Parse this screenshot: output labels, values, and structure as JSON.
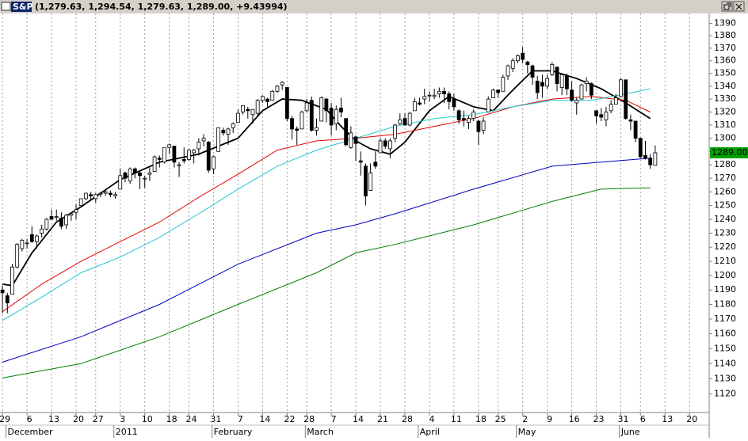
{
  "chart_data": {
    "type": "candlestick",
    "symbol": "S&P",
    "title": "(1,279.63, 1,294.54, 1,279.63, 1,289.00, +9.43994)",
    "log_scale": true,
    "grid": true,
    "up_color": "#ffffff",
    "down_color": "#000000",
    "open": [
      1190,
      1186,
      1187,
      1206,
      1219,
      1223,
      1229,
      1224,
      1230,
      1233,
      1242,
      1242,
      1241,
      1236,
      1243,
      1245,
      1250,
      1255,
      1258,
      1255,
      1259,
      1259,
      1259,
      1257,
      1262,
      1274,
      1268,
      1277,
      1274,
      1270,
      1273,
      1275,
      1285,
      1282,
      1293,
      1294,
      1280,
      1284,
      1284,
      1289,
      1292,
      1298,
      1297,
      1277,
      1290,
      1306,
      1303,
      1308,
      1312,
      1320,
      1322,
      1318,
      1319,
      1329,
      1330,
      1329,
      1336,
      1341,
      1339,
      1315,
      1307,
      1307,
      1321,
      1329,
      1306,
      1313,
      1330,
      1323,
      1311,
      1323,
      1315,
      1293,
      1301,
      1283,
      1279,
      1261,
      1282,
      1289,
      1298,
      1292,
      1300,
      1311,
      1315,
      1310,
      1321,
      1327,
      1330,
      1333,
      1332,
      1334,
      1336,
      1334,
      1330,
      1321,
      1315,
      1312,
      1315,
      1313,
      1306,
      1320,
      1331,
      1337,
      1336,
      1348,
      1354,
      1360,
      1366,
      1359,
      1356,
      1344,
      1343,
      1340,
      1349,
      1355,
      1339,
      1348,
      1337,
      1327,
      1330,
      1342,
      1342,
      1321,
      1318,
      1314,
      1321,
      1326,
      1332,
      1345,
      1314,
      1313,
      1300,
      1287,
      1285,
      1279.63
    ],
    "high": [
      1193,
      1188,
      1208,
      1223,
      1226,
      1226,
      1235,
      1229,
      1236,
      1241,
      1247,
      1247,
      1245,
      1244,
      1244,
      1251,
      1255,
      1259,
      1260,
      1259,
      1260,
      1262,
      1261,
      1260,
      1277,
      1275,
      1278,
      1278,
      1276,
      1272,
      1278,
      1287,
      1287,
      1293,
      1296,
      1294,
      1282,
      1293,
      1292,
      1292,
      1300,
      1303,
      1298,
      1287,
      1308,
      1308,
      1308,
      1312,
      1322,
      1325,
      1324,
      1322,
      1330,
      1333,
      1331,
      1337,
      1341,
      1344,
      1339,
      1317,
      1309,
      1321,
      1330,
      1332,
      1315,
      1332,
      1331,
      1327,
      1325,
      1331,
      1315,
      1309,
      1302,
      1290,
      1281,
      1281,
      1290,
      1300,
      1300,
      1300,
      1311,
      1319,
      1319,
      1320,
      1331,
      1331,
      1338,
      1336,
      1338,
      1339,
      1339,
      1336,
      1334,
      1322,
      1321,
      1317,
      1322,
      1314,
      1316,
      1332,
      1338,
      1337,
      1349,
      1357,
      1362,
      1365,
      1371,
      1360,
      1357,
      1348,
      1349,
      1349,
      1359,
      1355,
      1350,
      1350,
      1344,
      1331,
      1342,
      1347,
      1343,
      1321,
      1323,
      1324,
      1329,
      1334,
      1346,
      1345,
      1318,
      1313,
      1300,
      1298,
      1288,
      1294.54
    ],
    "low": [
      1174,
      1174,
      1187,
      1205,
      1217,
      1219,
      1223,
      1219,
      1227,
      1232,
      1240,
      1239,
      1233,
      1233,
      1239,
      1240,
      1250,
      1254,
      1254,
      1252,
      1256,
      1257,
      1256,
      1255,
      1262,
      1267,
      1266,
      1270,
      1262,
      1263,
      1268,
      1275,
      1278,
      1281,
      1288,
      1278,
      1271,
      1281,
      1283,
      1281,
      1287,
      1294,
      1274,
      1273,
      1290,
      1302,
      1295,
      1304,
      1312,
      1318,
      1315,
      1311,
      1317,
      1327,
      1324,
      1329,
      1335,
      1337,
      1313,
      1299,
      1295,
      1307,
      1320,
      1305,
      1302,
      1313,
      1312,
      1302,
      1306,
      1316,
      1294,
      1292,
      1283,
      1272,
      1250,
      1261,
      1277,
      1289,
      1292,
      1285,
      1297,
      1310,
      1310,
      1309,
      1321,
      1325,
      1326,
      1328,
      1330,
      1331,
      1327,
      1322,
      1321,
      1311,
      1309,
      1307,
      1313,
      1295,
      1303,
      1320,
      1331,
      1331,
      1336,
      1345,
      1351,
      1358,
      1358,
      1350,
      1341,
      1330,
      1331,
      1338,
      1348,
      1336,
      1333,
      1333,
      1328,
      1318,
      1330,
      1336,
      1330,
      1311,
      1313,
      1309,
      1319,
      1326,
      1332,
      1314,
      1306,
      1297,
      1285,
      1284,
      1277,
      1279.63
    ],
    "close": [
      1188,
      1181,
      1206,
      1222,
      1225,
      1223,
      1224,
      1228,
      1233,
      1240,
      1240,
      1242,
      1235,
      1243,
      1244,
      1247,
      1255,
      1259,
      1257,
      1258,
      1259,
      1260,
      1258,
      1258,
      1272,
      1270,
      1277,
      1274,
      1272,
      1270,
      1274,
      1286,
      1284,
      1293,
      1295,
      1282,
      1280,
      1283,
      1291,
      1291,
      1297,
      1300,
      1276,
      1286,
      1308,
      1304,
      1307,
      1311,
      1319,
      1325,
      1321,
      1322,
      1329,
      1332,
      1328,
      1336,
      1340,
      1343,
      1315,
      1307,
      1306,
      1320,
      1327,
      1306,
      1308,
      1331,
      1321,
      1310,
      1322,
      1320,
      1295,
      1304,
      1296,
      1282,
      1257,
      1274,
      1279,
      1298,
      1294,
      1298,
      1310,
      1314,
      1310,
      1319,
      1328,
      1326,
      1332,
      1333,
      1333,
      1336,
      1334,
      1328,
      1324,
      1314,
      1314,
      1315,
      1320,
      1305,
      1313,
      1330,
      1337,
      1335,
      1347,
      1356,
      1360,
      1364,
      1361,
      1357,
      1347,
      1335,
      1340,
      1346,
      1357,
      1342,
      1349,
      1338,
      1329,
      1329,
      1341,
      1344,
      1333,
      1317,
      1316,
      1320,
      1326,
      1331,
      1345,
      1315,
      1313,
      1300,
      1286,
      1285,
      1280,
      1289
    ],
    "series": [
      {
        "color": "#000000",
        "x": [
          0,
          2,
          6,
          11,
          16,
          24,
          32,
          40,
          48,
          53,
          57,
          61,
          66,
          69,
          72,
          75,
          79,
          82,
          87,
          91,
          96,
          100,
          104,
          108,
          112,
          117,
          122,
          127,
          132
        ],
        "values": [
          1194,
          1193,
          1216,
          1238,
          1249,
          1269,
          1282,
          1288,
          1300,
          1321,
          1330,
          1329,
          1322,
          1309,
          1298,
          1292,
          1288,
          1297,
          1321,
          1332,
          1324,
          1321,
          1337,
          1352,
          1352,
          1346,
          1338,
          1327,
          1315
        ]
      },
      {
        "color": "#e00000",
        "x": [
          0,
          8,
          16,
          24,
          32,
          40,
          48,
          56,
          64,
          72,
          80,
          88,
          96,
          104,
          112,
          120,
          127,
          132
        ],
        "values": [
          1175,
          1194,
          1210,
          1224,
          1238,
          1256,
          1273,
          1291,
          1298,
          1300,
          1303,
          1309,
          1315,
          1324,
          1330,
          1332,
          1329,
          1320
        ]
      },
      {
        "color": "#20c8d0",
        "x": [
          0,
          8,
          16,
          24,
          32,
          40,
          48,
          56,
          64,
          72,
          80,
          88,
          96,
          104,
          112,
          120,
          127,
          132
        ],
        "values": [
          1169,
          1185,
          1202,
          1213,
          1227,
          1244,
          1262,
          1279,
          1291,
          1300,
          1309,
          1315,
          1318,
          1324,
          1329,
          1329,
          1334,
          1338
        ]
      },
      {
        "color": "#0000c0",
        "x": [
          0,
          16,
          32,
          48,
          64,
          72,
          80,
          96,
          112,
          122,
          132
        ],
        "values": [
          1141,
          1158,
          1180,
          1208,
          1230,
          1236,
          1244,
          1262,
          1279,
          1282,
          1285
        ]
      },
      {
        "color": "#008000",
        "x": [
          0,
          16,
          32,
          48,
          64,
          72,
          80,
          96,
          112,
          122,
          132
        ],
        "values": [
          1130.5,
          1140,
          1158,
          1180,
          1202,
          1216,
          1222,
          1236,
          1253,
          1262,
          1263
        ]
      }
    ],
    "last": {
      "value": 1289,
      "label": "1289.000"
    },
    "xlim": [
      -0.5,
      144
    ],
    "ylim": [
      1108,
      1398
    ],
    "yticks": [
      1120,
      1130,
      1140,
      1150,
      1160,
      1170,
      1180,
      1190,
      1200,
      1210,
      1220,
      1230,
      1240,
      1250,
      1260,
      1270,
      1280,
      1290,
      1300,
      1310,
      1320,
      1330,
      1340,
      1350,
      1360,
      1370,
      1380,
      1390
    ],
    "xticks": [
      {
        "value": 0,
        "label": "29"
      },
      {
        "value": 5,
        "label": "6"
      },
      {
        "value": 10,
        "label": "13"
      },
      {
        "value": 15,
        "label": "20"
      },
      {
        "value": 19,
        "label": "27"
      },
      {
        "value": 24,
        "label": "3"
      },
      {
        "value": 29,
        "label": "10"
      },
      {
        "value": 34,
        "label": "18"
      },
      {
        "value": 38,
        "label": "24"
      },
      {
        "value": 43,
        "label": "31"
      },
      {
        "value": 48,
        "label": "7"
      },
      {
        "value": 53,
        "label": "14"
      },
      {
        "value": 58,
        "label": "22"
      },
      {
        "value": 62,
        "label": "28"
      },
      {
        "value": 67,
        "label": "7"
      },
      {
        "value": 72,
        "label": "14"
      },
      {
        "value": 77,
        "label": "21"
      },
      {
        "value": 82,
        "label": "28"
      },
      {
        "value": 87,
        "label": "4"
      },
      {
        "value": 92,
        "label": "11"
      },
      {
        "value": 97,
        "label": "18"
      },
      {
        "value": 101,
        "label": "25"
      },
      {
        "value": 106,
        "label": "2"
      },
      {
        "value": 111,
        "label": "9"
      },
      {
        "value": 116,
        "label": "16"
      },
      {
        "value": 121,
        "label": "23"
      },
      {
        "value": 126,
        "label": "31"
      },
      {
        "value": 130,
        "label": "6"
      },
      {
        "value": 135,
        "label": "13"
      },
      {
        "value": 140,
        "label": "20"
      }
    ],
    "months": [
      {
        "value": 2,
        "label": "December"
      },
      {
        "value": 24,
        "label": "2011"
      },
      {
        "value": 44,
        "label": "February"
      },
      {
        "value": 63,
        "label": "March"
      },
      {
        "value": 86,
        "label": "April"
      },
      {
        "value": 106,
        "label": "May"
      },
      {
        "value": 127,
        "label": "June"
      }
    ]
  }
}
